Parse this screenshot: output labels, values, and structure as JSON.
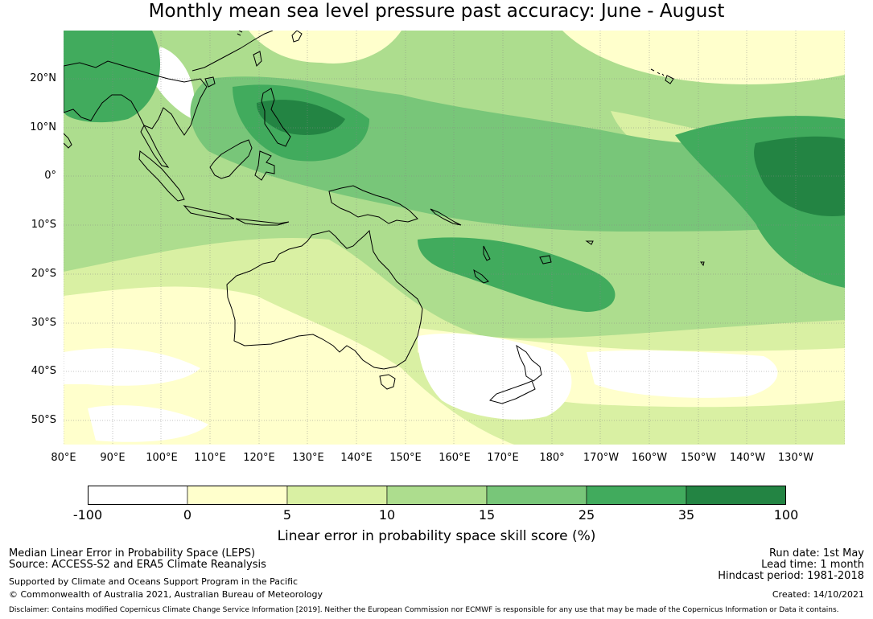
{
  "title": "Monthly mean sea level pressure past accuracy: June - August",
  "map": {
    "lat_labels": [
      "20°N",
      "10°N",
      "0°",
      "10°S",
      "20°S",
      "30°S",
      "40°S",
      "50°S"
    ],
    "lon_labels": [
      "80°E",
      "90°E",
      "100°E",
      "110°E",
      "120°E",
      "130°E",
      "140°E",
      "150°E",
      "160°E",
      "170°E",
      "180°",
      "170°W",
      "160°W",
      "150°W",
      "140°W",
      "130°W"
    ]
  },
  "colorbar": {
    "ticks": [
      "-100",
      "0",
      "5",
      "10",
      "15",
      "25",
      "35",
      "100"
    ],
    "colors": [
      "#ffffff",
      "#ffffcc",
      "#d9f0a3",
      "#addd8e",
      "#78c679",
      "#41ab5d",
      "#238443"
    ],
    "label": "Linear error in probability space skill score (%)"
  },
  "footer": {
    "metric": "Median Linear Error in Probability Space (LEPS)",
    "source": "Source: ACCESS-S2 and ERA5 Climate Reanalysis",
    "support": "Supported by Climate and Oceans Support Program in the Pacific",
    "copyright": "© Commonwealth of Australia 2021, Australian Bureau of Meteorology",
    "run_date": "Run date: 1st May",
    "lead_time": "Lead time: 1 month",
    "hindcast": "Hindcast period: 1981-2018",
    "created": "Created: 14/10/2021",
    "disclaimer": "Disclaimer: Contains modified Copernicus Climate Change Service Information [2019]. Neither the European Commission nor ECMWF is responsible for any use that may be made of the Copernicus Information or Data it contains."
  }
}
